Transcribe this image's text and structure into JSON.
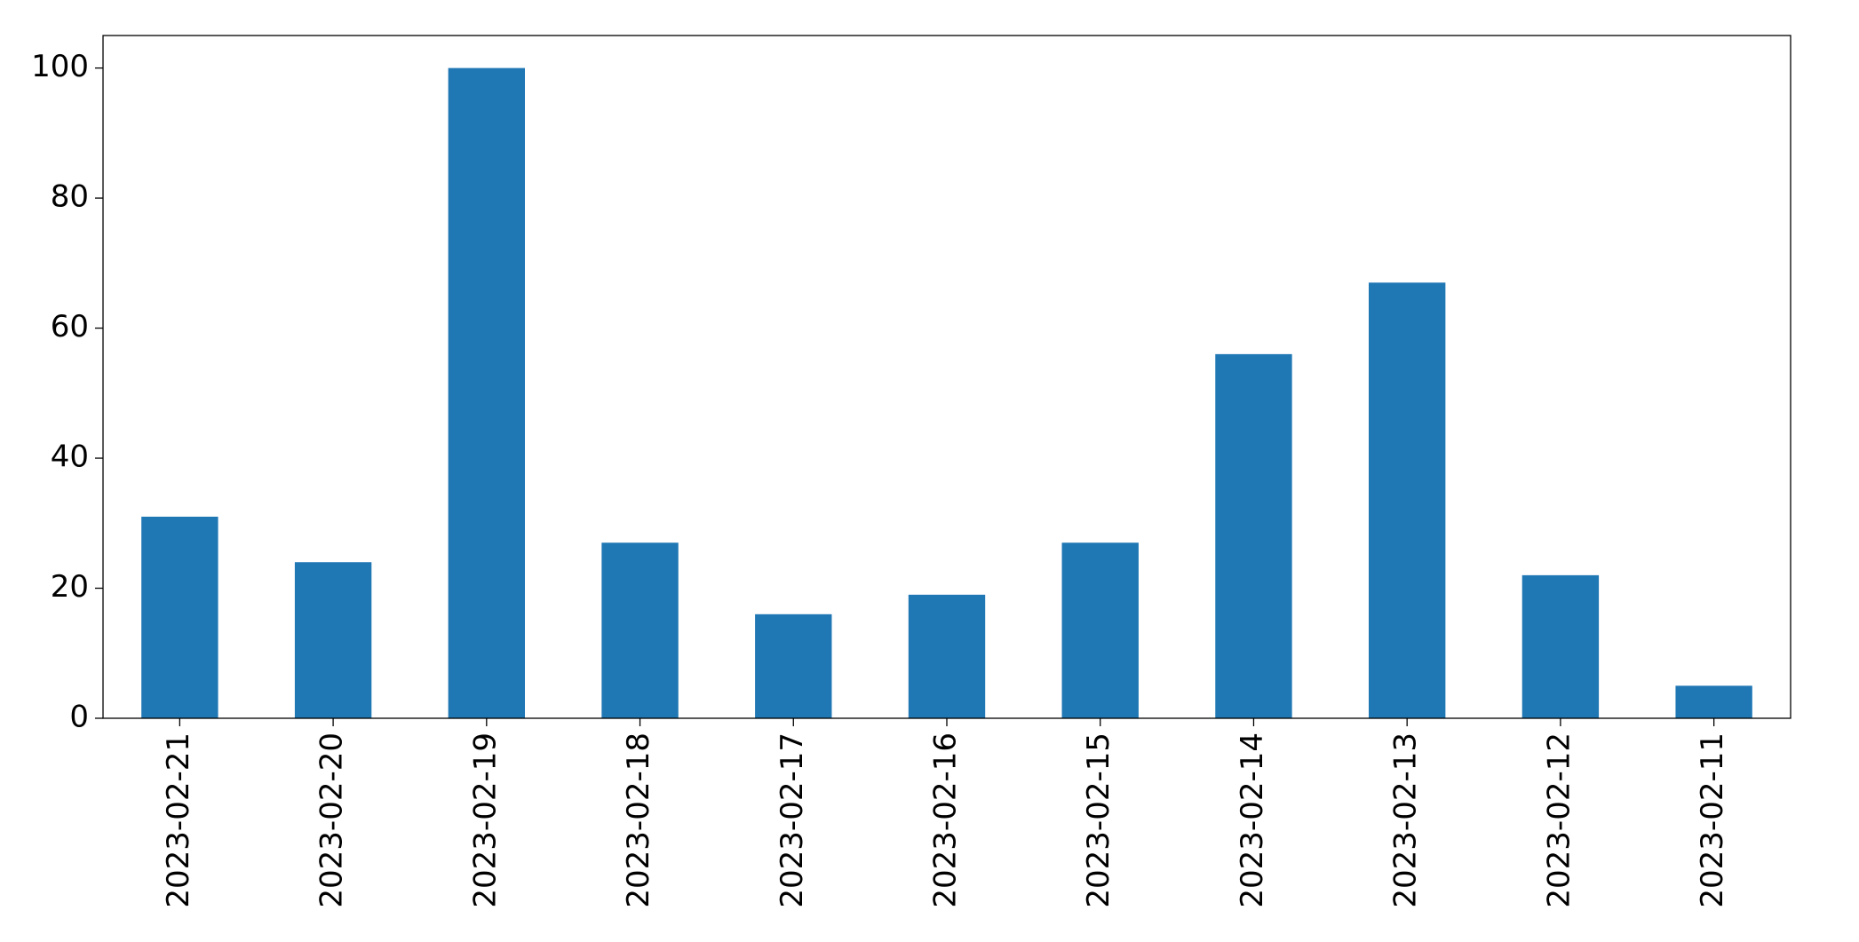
{
  "chart_data": {
    "type": "bar",
    "categories": [
      "2023-02-21",
      "2023-02-20",
      "2023-02-19",
      "2023-02-18",
      "2023-02-17",
      "2023-02-16",
      "2023-02-15",
      "2023-02-14",
      "2023-02-13",
      "2023-02-12",
      "2023-02-11"
    ],
    "values": [
      31,
      24,
      100,
      27,
      16,
      19,
      27,
      56,
      67,
      22,
      5
    ],
    "color": "#1f77b4",
    "ylim": [
      0,
      105
    ],
    "yticks": [
      0,
      20,
      40,
      60,
      80,
      100
    ],
    "grid": false
  }
}
